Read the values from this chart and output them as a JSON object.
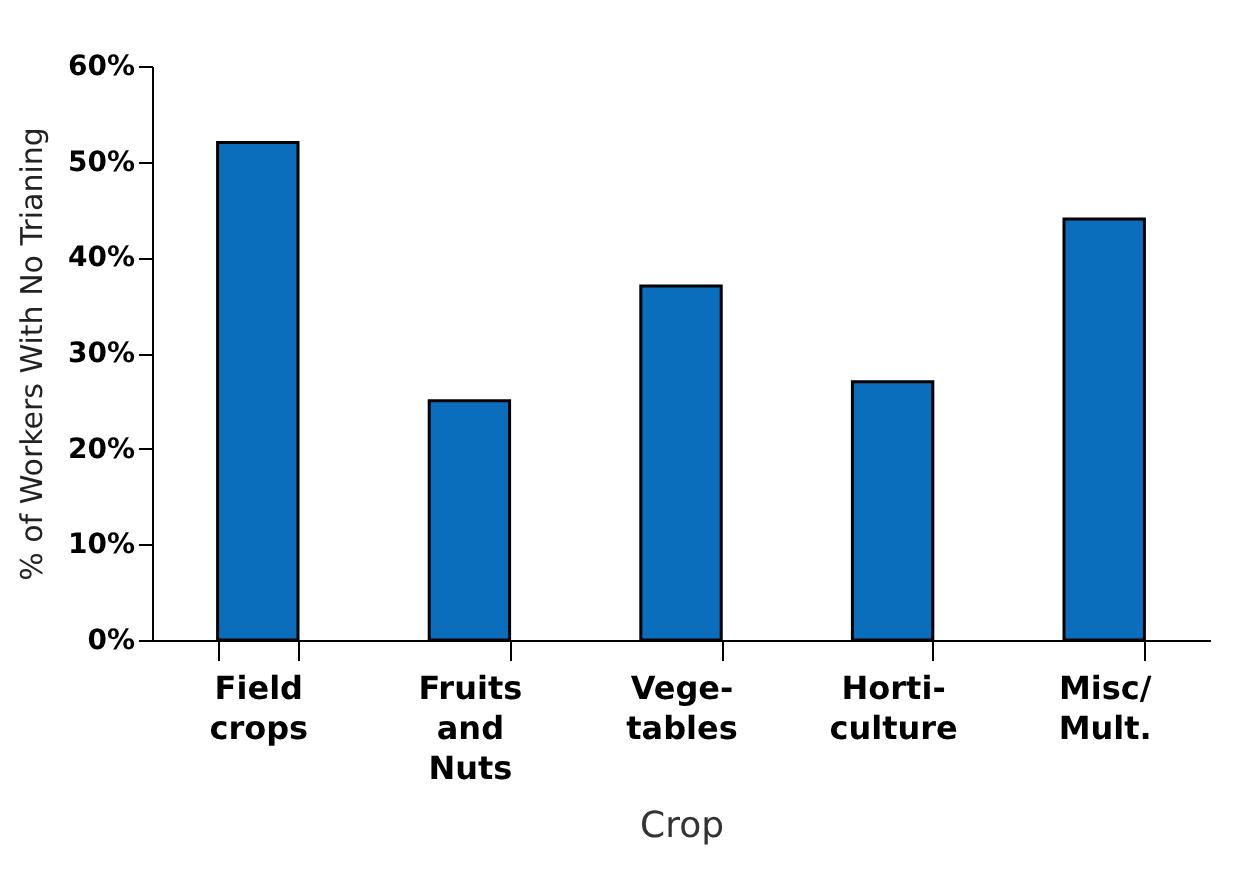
{
  "chart_data": {
    "type": "bar",
    "xlabel": "Crop",
    "ylabel": "% of Workers With No Trianing",
    "categories": [
      "Field crops",
      "Fruits and Nuts",
      "Vege-tables",
      "Horti-culture",
      "Misc/Mult."
    ],
    "values": [
      52,
      25,
      37,
      27,
      44
    ],
    "color": "#0a6ebd",
    "ylim": [
      0,
      60
    ],
    "yticks": [
      {
        "value": 0,
        "label": "0%"
      },
      {
        "value": 10,
        "label": "10%"
      },
      {
        "value": 20,
        "label": "20%"
      },
      {
        "value": 30,
        "label": "30%"
      },
      {
        "value": 40,
        "label": "40%"
      },
      {
        "value": 50,
        "label": "50%"
      },
      {
        "value": 60,
        "label": "60%"
      }
    ],
    "grid": false
  }
}
